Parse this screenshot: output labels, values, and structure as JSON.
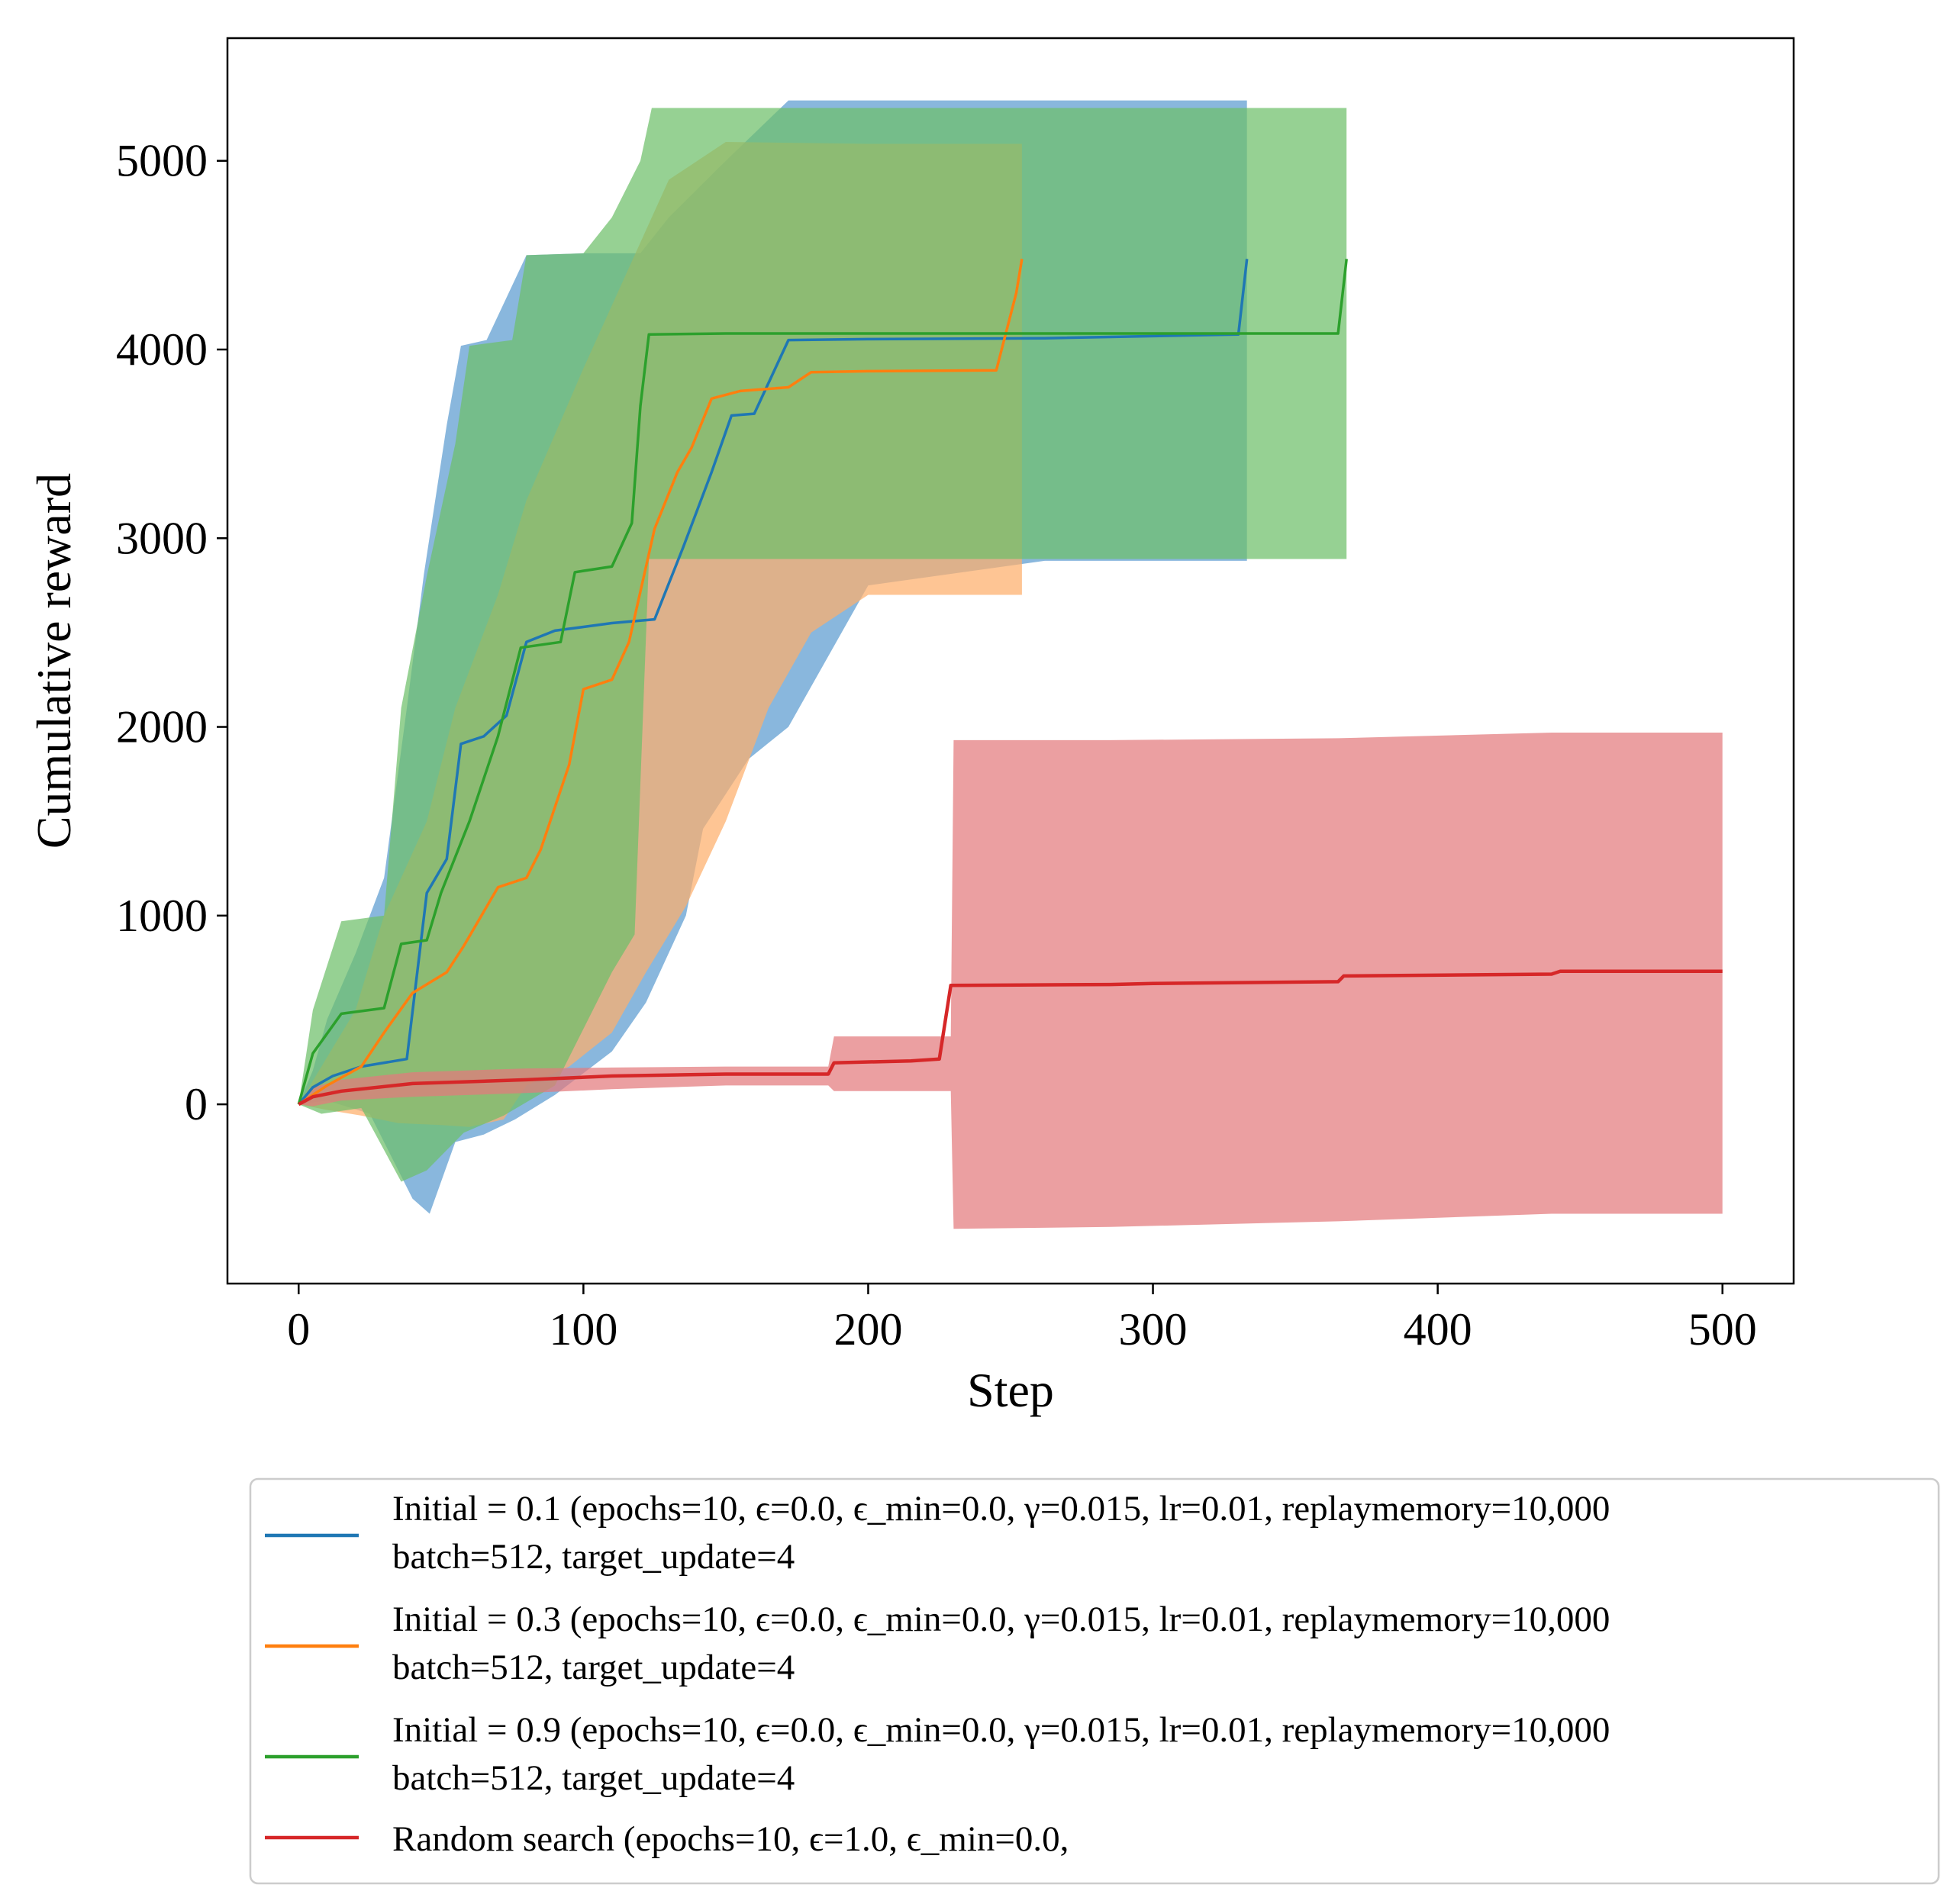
{
  "chart_data": {
    "type": "line",
    "title": "",
    "xlabel": "Step",
    "ylabel": "Cumulative reward",
    "xlim": [
      -25,
      525
    ],
    "ylim": [
      -950,
      5650
    ],
    "xticks": [
      0,
      100,
      200,
      300,
      400,
      500
    ],
    "yticks": [
      0,
      1000,
      2000,
      3000,
      4000,
      5000
    ],
    "legend_position": "below",
    "series": [
      {
        "name": "Initial = 0.1",
        "legend_lines": [
          "Initial = 0.1 (epochs=10, ϵ=0.0, ϵ_min=0.0, γ=0.015, lr=0.01, replaymemory=10,000",
          "batch=512, target_update=4"
        ],
        "color": "#1f77b4",
        "fill_color": "#5b9bd0",
        "points": [
          [
            0,
            0
          ],
          [
            5,
            90
          ],
          [
            12,
            150
          ],
          [
            22,
            200
          ],
          [
            38,
            240
          ],
          [
            45,
            1120
          ],
          [
            52,
            1300
          ],
          [
            57,
            1910
          ],
          [
            65,
            1950
          ],
          [
            73,
            2060
          ],
          [
            80,
            2450
          ],
          [
            90,
            2510
          ],
          [
            100,
            2530
          ],
          [
            110,
            2550
          ],
          [
            125,
            2570
          ],
          [
            135,
            2950
          ],
          [
            145,
            3350
          ],
          [
            152,
            3650
          ],
          [
            160,
            3660
          ],
          [
            172,
            4050
          ],
          [
            200,
            4055
          ],
          [
            262,
            4060
          ],
          [
            330,
            4080
          ],
          [
            333,
            4480
          ]
        ],
        "upper": [
          [
            0,
            0
          ],
          [
            5,
            180
          ],
          [
            10,
            450
          ],
          [
            20,
            800
          ],
          [
            30,
            1200
          ],
          [
            38,
            2100
          ],
          [
            44,
            2810
          ],
          [
            52,
            3600
          ],
          [
            57,
            4020
          ],
          [
            66,
            4050
          ],
          [
            80,
            4500
          ],
          [
            100,
            4510
          ],
          [
            120,
            4510
          ],
          [
            130,
            4700
          ],
          [
            150,
            5000
          ],
          [
            172,
            5320
          ],
          [
            262,
            5320
          ],
          [
            330,
            5320
          ],
          [
            333,
            5320
          ]
        ],
        "lower": [
          [
            0,
            0
          ],
          [
            10,
            20
          ],
          [
            25,
            -50
          ],
          [
            40,
            -500
          ],
          [
            46,
            -580
          ],
          [
            55,
            -200
          ],
          [
            65,
            -160
          ],
          [
            76,
            -80
          ],
          [
            90,
            50
          ],
          [
            110,
            280
          ],
          [
            122,
            540
          ],
          [
            136,
            1000
          ],
          [
            142,
            1460
          ],
          [
            158,
            1830
          ],
          [
            172,
            2000
          ],
          [
            200,
            2750
          ],
          [
            262,
            2880
          ],
          [
            333,
            2880
          ]
        ]
      },
      {
        "name": "Initial = 0.3",
        "legend_lines": [
          "Initial = 0.3 (epochs=10, ϵ=0.0, ϵ_min=0.0, γ=0.015, lr=0.01, replaymemory=10,000",
          "batch=512, target_update=4"
        ],
        "color": "#ff7f0e",
        "fill_color": "#fdae6b",
        "points": [
          [
            0,
            0
          ],
          [
            10,
            100
          ],
          [
            22,
            200
          ],
          [
            30,
            380
          ],
          [
            40,
            590
          ],
          [
            52,
            700
          ],
          [
            58,
            840
          ],
          [
            70,
            1150
          ],
          [
            80,
            1200
          ],
          [
            85,
            1350
          ],
          [
            95,
            1800
          ],
          [
            100,
            2200
          ],
          [
            110,
            2250
          ],
          [
            116,
            2450
          ],
          [
            125,
            3050
          ],
          [
            133,
            3350
          ],
          [
            138,
            3480
          ],
          [
            145,
            3740
          ],
          [
            155,
            3780
          ],
          [
            172,
            3800
          ],
          [
            180,
            3880
          ],
          [
            200,
            3885
          ],
          [
            245,
            3890
          ],
          [
            252,
            4300
          ],
          [
            254,
            4480
          ]
        ],
        "upper": [
          [
            0,
            0
          ],
          [
            10,
            250
          ],
          [
            20,
            500
          ],
          [
            30,
            1000
          ],
          [
            45,
            1500
          ],
          [
            55,
            2100
          ],
          [
            70,
            2700
          ],
          [
            80,
            3200
          ],
          [
            100,
            3900
          ],
          [
            115,
            4400
          ],
          [
            130,
            4900
          ],
          [
            150,
            5100
          ],
          [
            200,
            5090
          ],
          [
            254,
            5090
          ]
        ],
        "lower": [
          [
            0,
            0
          ],
          [
            10,
            -30
          ],
          [
            22,
            -60
          ],
          [
            35,
            -100
          ],
          [
            50,
            -110
          ],
          [
            60,
            -120
          ],
          [
            72,
            -80
          ],
          [
            80,
            100
          ],
          [
            95,
            200
          ],
          [
            110,
            380
          ],
          [
            122,
            700
          ],
          [
            136,
            1050
          ],
          [
            150,
            1500
          ],
          [
            165,
            2100
          ],
          [
            180,
            2500
          ],
          [
            200,
            2700
          ],
          [
            245,
            2700
          ],
          [
            254,
            2700
          ]
        ]
      },
      {
        "name": "Initial = 0.9",
        "legend_lines": [
          "Initial = 0.9 (epochs=10, ϵ=0.0, ϵ_min=0.0, γ=0.015, lr=0.01, replaymemory=10,000",
          "batch=512, target_update=4"
        ],
        "color": "#2ca02c",
        "fill_color": "#6dbf6a",
        "points": [
          [
            0,
            0
          ],
          [
            5,
            270
          ],
          [
            15,
            480
          ],
          [
            30,
            510
          ],
          [
            36,
            850
          ],
          [
            45,
            870
          ],
          [
            50,
            1120
          ],
          [
            60,
            1500
          ],
          [
            70,
            1950
          ],
          [
            78,
            2420
          ],
          [
            92,
            2450
          ],
          [
            97,
            2820
          ],
          [
            110,
            2850
          ],
          [
            117,
            3080
          ],
          [
            120,
            3700
          ],
          [
            123,
            4080
          ],
          [
            150,
            4085
          ],
          [
            250,
            4085
          ],
          [
            330,
            4085
          ],
          [
            365,
            4085
          ],
          [
            368,
            4480
          ]
        ],
        "upper": [
          [
            0,
            0
          ],
          [
            5,
            500
          ],
          [
            15,
            970
          ],
          [
            30,
            1000
          ],
          [
            36,
            2100
          ],
          [
            45,
            2800
          ],
          [
            55,
            3500
          ],
          [
            60,
            4020
          ],
          [
            75,
            4050
          ],
          [
            80,
            4500
          ],
          [
            100,
            4510
          ],
          [
            110,
            4700
          ],
          [
            120,
            5000
          ],
          [
            124,
            5280
          ],
          [
            250,
            5280
          ],
          [
            330,
            5280
          ],
          [
            368,
            5280
          ]
        ],
        "lower": [
          [
            0,
            0
          ],
          [
            8,
            -50
          ],
          [
            22,
            -20
          ],
          [
            36,
            -410
          ],
          [
            45,
            -350
          ],
          [
            58,
            -150
          ],
          [
            72,
            -60
          ],
          [
            90,
            100
          ],
          [
            100,
            400
          ],
          [
            110,
            700
          ],
          [
            118,
            900
          ],
          [
            123,
            2890
          ],
          [
            200,
            2890
          ],
          [
            330,
            2890
          ],
          [
            368,
            2890
          ]
        ]
      },
      {
        "name": "Random search",
        "legend_lines": [
          "Random search (epochs=10, ϵ=1.0, ϵ_min=0.0,"
        ],
        "color": "#d62728",
        "fill_color": "#e37a7d",
        "points": [
          [
            0,
            0
          ],
          [
            5,
            40
          ],
          [
            15,
            70
          ],
          [
            40,
            110
          ],
          [
            80,
            130
          ],
          [
            110,
            150
          ],
          [
            150,
            160
          ],
          [
            186,
            160
          ],
          [
            188,
            220
          ],
          [
            215,
            230
          ],
          [
            225,
            240
          ],
          [
            229,
            630
          ],
          [
            285,
            635
          ],
          [
            300,
            640
          ],
          [
            365,
            650
          ],
          [
            367,
            680
          ],
          [
            440,
            690
          ],
          [
            443,
            705
          ],
          [
            500,
            705
          ]
        ],
        "upper": [
          [
            0,
            0
          ],
          [
            5,
            90
          ],
          [
            15,
            130
          ],
          [
            40,
            170
          ],
          [
            80,
            190
          ],
          [
            110,
            195
          ],
          [
            150,
            200
          ],
          [
            186,
            200
          ],
          [
            188,
            360
          ],
          [
            229,
            360
          ],
          [
            230,
            1930
          ],
          [
            285,
            1930
          ],
          [
            365,
            1940
          ],
          [
            440,
            1970
          ],
          [
            500,
            1970
          ]
        ],
        "lower": [
          [
            0,
            0
          ],
          [
            5,
            -10
          ],
          [
            15,
            20
          ],
          [
            40,
            40
          ],
          [
            80,
            60
          ],
          [
            110,
            80
          ],
          [
            150,
            100
          ],
          [
            186,
            100
          ],
          [
            188,
            70
          ],
          [
            229,
            70
          ],
          [
            230,
            -660
          ],
          [
            285,
            -650
          ],
          [
            365,
            -620
          ],
          [
            440,
            -580
          ],
          [
            500,
            -580
          ]
        ]
      }
    ]
  }
}
